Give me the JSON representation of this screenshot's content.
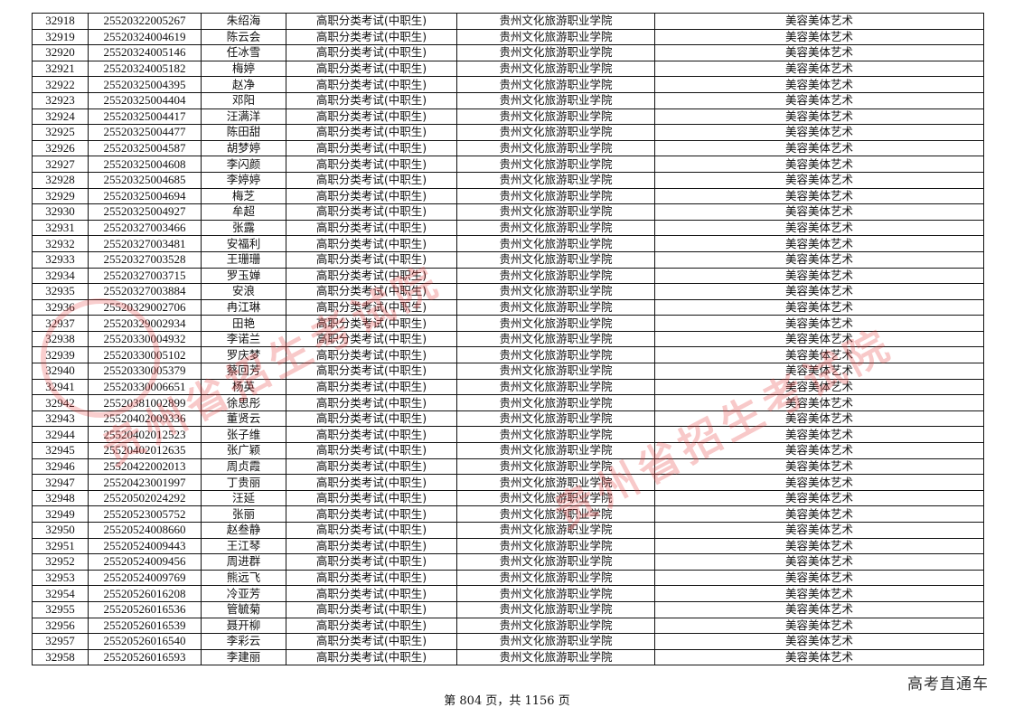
{
  "table": {
    "rows": [
      [
        "32918",
        "25520322005267",
        "朱绍海",
        "高职分类考试(中职生)",
        "贵州文化旅游职业学院",
        "美容美体艺术"
      ],
      [
        "32919",
        "25520324004619",
        "陈云会",
        "高职分类考试(中职生)",
        "贵州文化旅游职业学院",
        "美容美体艺术"
      ],
      [
        "32920",
        "25520324005146",
        "任冰雪",
        "高职分类考试(中职生)",
        "贵州文化旅游职业学院",
        "美容美体艺术"
      ],
      [
        "32921",
        "25520324005182",
        "梅婷",
        "高职分类考试(中职生)",
        "贵州文化旅游职业学院",
        "美容美体艺术"
      ],
      [
        "32922",
        "25520325004395",
        "赵净",
        "高职分类考试(中职生)",
        "贵州文化旅游职业学院",
        "美容美体艺术"
      ],
      [
        "32923",
        "25520325004404",
        "邓阳",
        "高职分类考试(中职生)",
        "贵州文化旅游职业学院",
        "美容美体艺术"
      ],
      [
        "32924",
        "25520325004417",
        "汪满洋",
        "高职分类考试(中职生)",
        "贵州文化旅游职业学院",
        "美容美体艺术"
      ],
      [
        "32925",
        "25520325004477",
        "陈田甜",
        "高职分类考试(中职生)",
        "贵州文化旅游职业学院",
        "美容美体艺术"
      ],
      [
        "32926",
        "25520325004587",
        "胡梦婷",
        "高职分类考试(中职生)",
        "贵州文化旅游职业学院",
        "美容美体艺术"
      ],
      [
        "32927",
        "25520325004608",
        "李闪颜",
        "高职分类考试(中职生)",
        "贵州文化旅游职业学院",
        "美容美体艺术"
      ],
      [
        "32928",
        "25520325004685",
        "李婷婷",
        "高职分类考试(中职生)",
        "贵州文化旅游职业学院",
        "美容美体艺术"
      ],
      [
        "32929",
        "25520325004694",
        "梅芝",
        "高职分类考试(中职生)",
        "贵州文化旅游职业学院",
        "美容美体艺术"
      ],
      [
        "32930",
        "25520325004927",
        "牟超",
        "高职分类考试(中职生)",
        "贵州文化旅游职业学院",
        "美容美体艺术"
      ],
      [
        "32931",
        "25520327003466",
        "张露",
        "高职分类考试(中职生)",
        "贵州文化旅游职业学院",
        "美容美体艺术"
      ],
      [
        "32932",
        "25520327003481",
        "安福利",
        "高职分类考试(中职生)",
        "贵州文化旅游职业学院",
        "美容美体艺术"
      ],
      [
        "32933",
        "25520327003528",
        "王珊珊",
        "高职分类考试(中职生)",
        "贵州文化旅游职业学院",
        "美容美体艺术"
      ],
      [
        "32934",
        "25520327003715",
        "罗玉婵",
        "高职分类考试(中职生)",
        "贵州文化旅游职业学院",
        "美容美体艺术"
      ],
      [
        "32935",
        "25520327003884",
        "安浪",
        "高职分类考试(中职生)",
        "贵州文化旅游职业学院",
        "美容美体艺术"
      ],
      [
        "32936",
        "25520329002706",
        "冉江琳",
        "高职分类考试(中职生)",
        "贵州文化旅游职业学院",
        "美容美体艺术"
      ],
      [
        "32937",
        "25520329002934",
        "田艳",
        "高职分类考试(中职生)",
        "贵州文化旅游职业学院",
        "美容美体艺术"
      ],
      [
        "32938",
        "25520330004932",
        "李诺兰",
        "高职分类考试(中职生)",
        "贵州文化旅游职业学院",
        "美容美体艺术"
      ],
      [
        "32939",
        "25520330005102",
        "罗庆梦",
        "高职分类考试(中职生)",
        "贵州文化旅游职业学院",
        "美容美体艺术"
      ],
      [
        "32940",
        "25520330005379",
        "蔡回芳",
        "高职分类考试(中职生)",
        "贵州文化旅游职业学院",
        "美容美体艺术"
      ],
      [
        "32941",
        "25520330006651",
        "杨英",
        "高职分类考试(中职生)",
        "贵州文化旅游职业学院",
        "美容美体艺术"
      ],
      [
        "32942",
        "25520381002899",
        "徐思彤",
        "高职分类考试(中职生)",
        "贵州文化旅游职业学院",
        "美容美体艺术"
      ],
      [
        "32943",
        "25520402009336",
        "董贤云",
        "高职分类考试(中职生)",
        "贵州文化旅游职业学院",
        "美容美体艺术"
      ],
      [
        "32944",
        "25520402012523",
        "张子维",
        "高职分类考试(中职生)",
        "贵州文化旅游职业学院",
        "美容美体艺术"
      ],
      [
        "32945",
        "25520402012635",
        "张广颖",
        "高职分类考试(中职生)",
        "贵州文化旅游职业学院",
        "美容美体艺术"
      ],
      [
        "32946",
        "25520422002013",
        "周贞霞",
        "高职分类考试(中职生)",
        "贵州文化旅游职业学院",
        "美容美体艺术"
      ],
      [
        "32947",
        "25520423001997",
        "丁贵丽",
        "高职分类考试(中职生)",
        "贵州文化旅游职业学院",
        "美容美体艺术"
      ],
      [
        "32948",
        "25520502024292",
        "汪延",
        "高职分类考试(中职生)",
        "贵州文化旅游职业学院",
        "美容美体艺术"
      ],
      [
        "32949",
        "25520523005752",
        "张丽",
        "高职分类考试(中职生)",
        "贵州文化旅游职业学院",
        "美容美体艺术"
      ],
      [
        "32950",
        "25520524008660",
        "赵叁静",
        "高职分类考试(中职生)",
        "贵州文化旅游职业学院",
        "美容美体艺术"
      ],
      [
        "32951",
        "25520524009443",
        "王江琴",
        "高职分类考试(中职生)",
        "贵州文化旅游职业学院",
        "美容美体艺术"
      ],
      [
        "32952",
        "25520524009456",
        "周进群",
        "高职分类考试(中职生)",
        "贵州文化旅游职业学院",
        "美容美体艺术"
      ],
      [
        "32953",
        "25520524009769",
        "熊远飞",
        "高职分类考试(中职生)",
        "贵州文化旅游职业学院",
        "美容美体艺术"
      ],
      [
        "32954",
        "25520526016208",
        "冷亚芳",
        "高职分类考试(中职生)",
        "贵州文化旅游职业学院",
        "美容美体艺术"
      ],
      [
        "32955",
        "25520526016536",
        "管毓菊",
        "高职分类考试(中职生)",
        "贵州文化旅游职业学院",
        "美容美体艺术"
      ],
      [
        "32956",
        "25520526016539",
        "聂开柳",
        "高职分类考试(中职生)",
        "贵州文化旅游职业学院",
        "美容美体艺术"
      ],
      [
        "32957",
        "25520526016540",
        "李彩云",
        "高职分类考试(中职生)",
        "贵州文化旅游职业学院",
        "美容美体艺术"
      ],
      [
        "32958",
        "25520526016593",
        "李建丽",
        "高职分类考试(中职生)",
        "贵州文化旅游职业学院",
        "美容美体艺术"
      ]
    ]
  },
  "footer": {
    "page_text": "第 804 页，共 1156 页"
  },
  "brand": {
    "label": "高考直通车"
  },
  "watermark": {
    "text": "贵州省招生考试院",
    "color": "#e63c3c"
  }
}
